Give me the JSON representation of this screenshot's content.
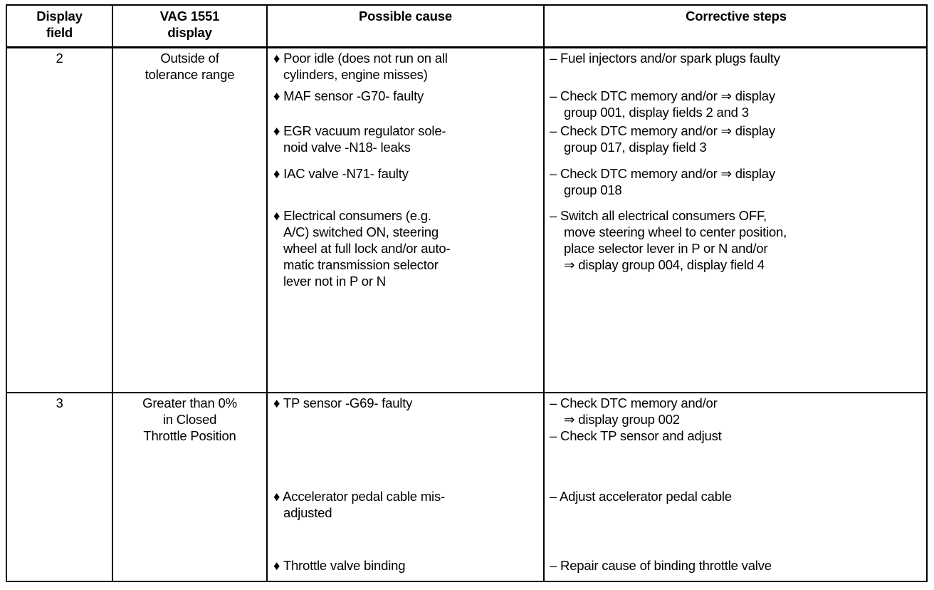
{
  "headers": [
    "Display\nfield",
    "VAG 1551\ndisplay",
    "Possible cause",
    "Corrective steps"
  ],
  "rows": [
    {
      "field": "2",
      "display": [
        "Outside of",
        "tolerance range"
      ],
      "items": [
        {
          "cause": [
            "♦ Poor idle (does not run on all",
            "cylinders, engine misses)"
          ],
          "steps": [
            "–  Fuel injectors and/or spark plugs faulty"
          ]
        },
        {
          "cause": [
            "♦ MAF sensor -G70- faulty"
          ],
          "steps": [
            "–  Check DTC memory and/or ⇒ display",
            "group 001, display fields 2 and 3"
          ]
        },
        {
          "cause": [
            "♦ EGR vacuum regulator sole-",
            "noid valve -N18- leaks"
          ],
          "steps": [
            "–  Check DTC memory and/or ⇒ display",
            "group 017, display field 3"
          ]
        },
        {
          "cause": [
            "♦ IAC valve -N71- faulty"
          ],
          "steps": [
            "–  Check DTC memory and/or ⇒ display",
            "group 018"
          ]
        },
        {
          "cause": [
            "♦ Electrical consumers (e.g.",
            "A/C) switched ON, steering",
            "wheel at full lock and/or auto-",
            "matic transmission selector",
            "lever not in P or N"
          ],
          "steps": [
            "–  Switch all electrical consumers OFF,",
            "move steering wheel to center position,",
            "place selector lever in P or N and/or",
            "⇒ display group 004, display field 4"
          ]
        }
      ]
    },
    {
      "field": "3",
      "display": [
        "Greater than 0%",
        "in Closed",
        "Throttle Position"
      ],
      "items": [
        {
          "cause": [
            "♦ TP sensor -G69- faulty"
          ],
          "steps": [
            "–  Check DTC memory and/or",
            "⇒ display group 002",
            "–  Check TP sensor and adjust"
          ]
        },
        {
          "cause": [
            "♦ Accelerator pedal cable mis-",
            "adjusted"
          ],
          "steps": [
            "–  Adjust accelerator pedal cable"
          ]
        },
        {
          "cause": [
            "♦ Throttle valve binding"
          ],
          "steps": [
            "–  Repair cause of binding throttle valve"
          ]
        }
      ]
    }
  ]
}
